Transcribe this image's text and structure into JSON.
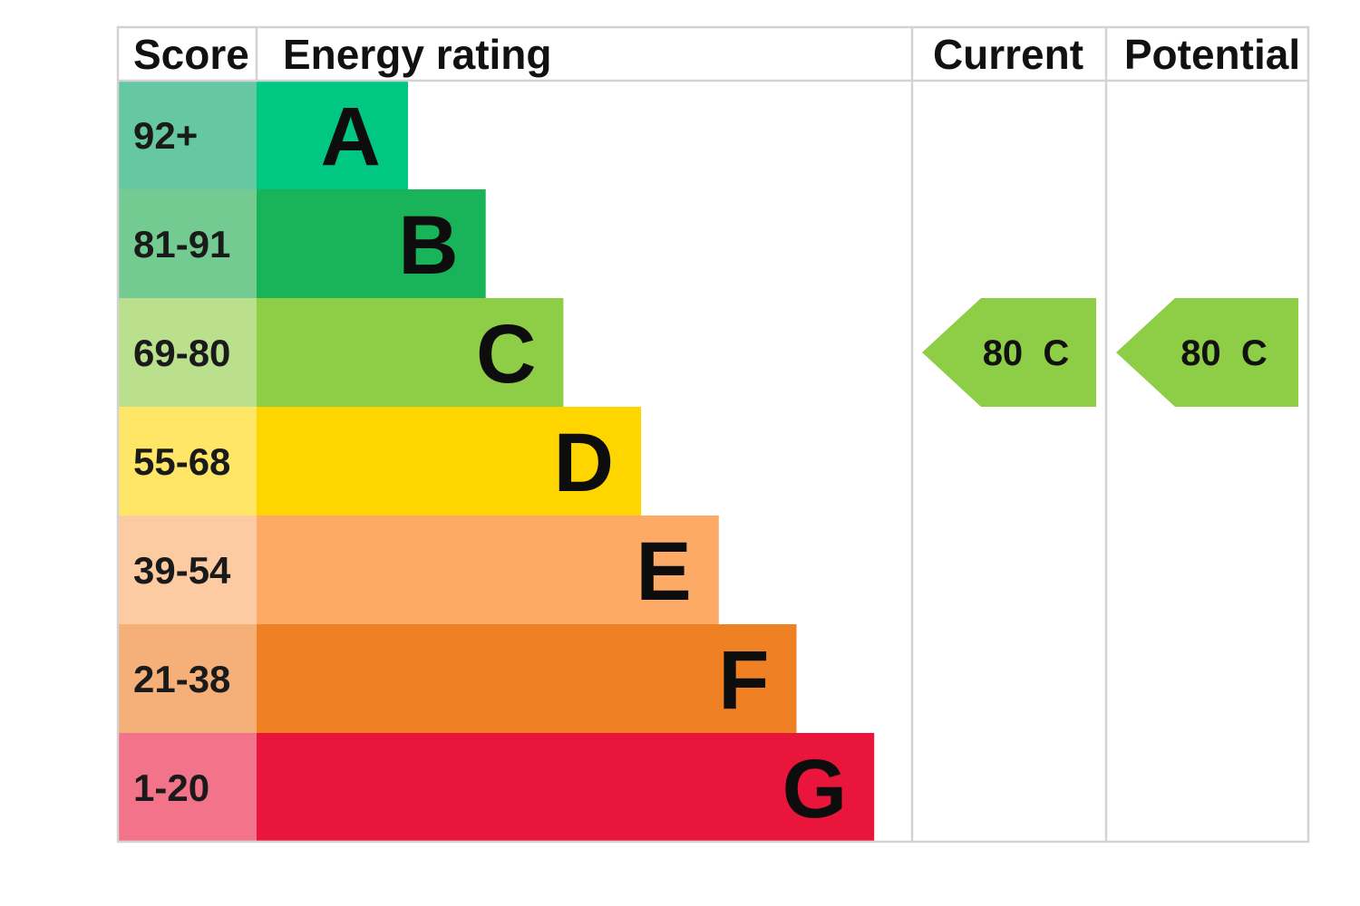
{
  "chart_data": {
    "type": "bar",
    "headers": {
      "score": "Score",
      "rating": "Energy rating",
      "current": "Current",
      "potential": "Potential"
    },
    "bands": [
      {
        "letter": "A",
        "range": "92+",
        "color": "#00c781",
        "score_bg": "#66c8a3"
      },
      {
        "letter": "B",
        "range": "81-91",
        "color": "#19b459",
        "score_bg": "#73cb91"
      },
      {
        "letter": "C",
        "range": "69-80",
        "color": "#8dce46",
        "score_bg": "#badf8d"
      },
      {
        "letter": "D",
        "range": "55-68",
        "color": "#ffd500",
        "score_bg": "#ffe666"
      },
      {
        "letter": "E",
        "range": "39-54",
        "color": "#fcaa65",
        "score_bg": "#fdcba2"
      },
      {
        "letter": "F",
        "range": "21-38",
        "color": "#ef8023",
        "score_bg": "#f4b078"
      },
      {
        "letter": "G",
        "range": "1-20",
        "color": "#e9153b",
        "score_bg": "#f2738a"
      }
    ],
    "current": {
      "value": 80,
      "letter": "C",
      "label": "80  C",
      "color": "#8dce46"
    },
    "potential": {
      "value": 80,
      "letter": "C",
      "label": "80  C",
      "color": "#8dce46"
    }
  }
}
